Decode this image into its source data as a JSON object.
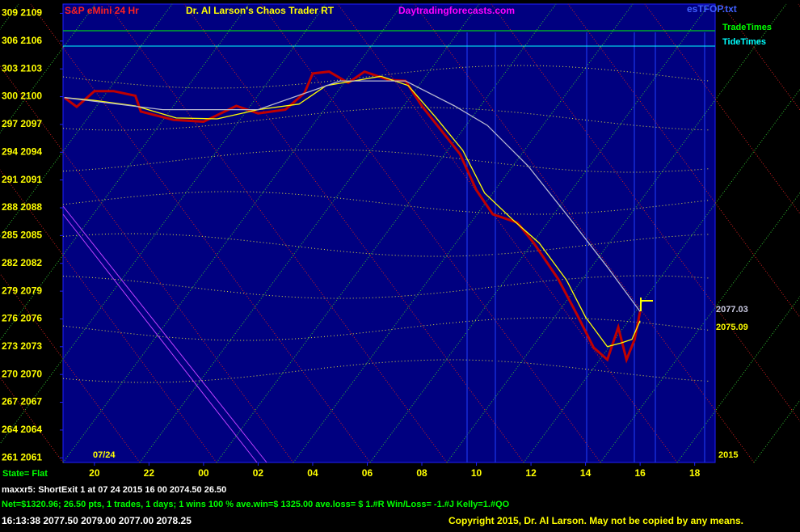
{
  "chart_data": {
    "type": "line",
    "title": "S&P eMini 24 Hr",
    "author_title": "Dr. Al Larson's Chaos Trader RT",
    "website": "Daytradingforecasts.com",
    "file_name": "esTFOP.txt",
    "time_lines": [
      "TradeTimes",
      "TideTimes"
    ],
    "date_label": "07/24",
    "year_label": "2015",
    "state": "State= Flat",
    "price_labels": [
      "2077.03",
      "2075.09"
    ],
    "footer": [
      "maxxr5: ShortExit 1 at 07 24 2015 16 00   2074.50     26.50",
      "Net=$1320.96; 26.50 pts, 1 trades, 1 days; 1 wins 100 % ave.win=$ 1325.00 ave.loss= $ 1.#R Win/Loss= -1.#J Kelly=1.#QO",
      "16:13:38  2077.50 2079.00 2077.00 2078.25",
      "Copyright 2015, Dr. Al Larson. May not be copied by any means."
    ],
    "xlim": [
      18.85,
      42.75
    ],
    "ylim": [
      2060.5,
      2110
    ],
    "xticks": [
      20,
      22,
      {
        "value": 24,
        "label": "00"
      },
      {
        "value": 26,
        "label": "02"
      },
      {
        "value": 28,
        "label": "04"
      },
      {
        "value": 30,
        "label": "06"
      },
      {
        "value": 32,
        "label": "08"
      },
      {
        "value": 34,
        "label": "10"
      },
      {
        "value": 36,
        "label": "12"
      },
      {
        "value": 38,
        "label": "14"
      },
      {
        "value": 40,
        "label": "16"
      },
      {
        "value": 42,
        "label": "18"
      }
    ],
    "yticks": [
      {
        "value": 2109,
        "label": "309 2109"
      },
      {
        "value": 2106,
        "label": "306 2106"
      },
      {
        "value": 2103,
        "label": "303 2103"
      },
      {
        "value": 2100,
        "label": "300 2100"
      },
      {
        "value": 2097,
        "label": "297 2097"
      },
      {
        "value": 2094,
        "label": "294 2094"
      },
      {
        "value": 2091,
        "label": "291 2091"
      },
      {
        "value": 2088,
        "label": "288 2088"
      },
      {
        "value": 2085,
        "label": "285 2085"
      },
      {
        "value": 2082,
        "label": "282 2082"
      },
      {
        "value": 2079,
        "label": "279 2079"
      },
      {
        "value": 2076,
        "label": "276 2076"
      },
      {
        "value": 2073,
        "label": "273 2073"
      },
      {
        "value": 2070,
        "label": "270 2070"
      },
      {
        "value": 2067,
        "label": "267 2067"
      },
      {
        "value": 2064,
        "label": "264 2064"
      },
      {
        "value": 2061,
        "label": "261 2061"
      }
    ],
    "series": [
      {
        "color": "#c00000",
        "x": [
          18.9,
          19.35,
          20,
          20.7,
          21.5,
          21.7,
          22.9,
          24,
          25.2,
          26,
          27,
          27.7,
          28,
          28.6,
          29.3,
          29.9,
          30.8,
          31.4,
          32,
          32.7,
          33.4,
          33.6,
          34,
          34.6,
          35.5,
          36.1,
          37,
          37.7,
          38.3,
          38.8,
          39.2,
          39.5,
          39.8,
          40
        ],
        "values": [
          2099.9,
          2098.9,
          2100.6,
          2100.6,
          2100.1,
          2098.4,
          2097.5,
          2097.3,
          2099,
          2098.2,
          2098.6,
          2100.4,
          2102.5,
          2102.7,
          2101.5,
          2102.7,
          2101.8,
          2101.7,
          2099,
          2096.4,
          2093.8,
          2092.5,
          2089.9,
          2087.3,
          2086.4,
          2084.2,
          2080.3,
          2076.4,
          2072.9,
          2071.6,
          2075.1,
          2071.6,
          2073.8,
          2076.8
        ]
      },
      {
        "color": "#ffff00",
        "x": [
          18.9,
          20,
          21.5,
          23,
          24.5,
          26,
          27.5,
          28.5,
          29.5,
          30.5,
          31.5,
          32.5,
          33.5,
          34.3,
          35.3,
          36.3,
          37.3,
          38,
          38.8,
          39.3,
          39.7,
          40
        ],
        "values": [
          2099.9,
          2099.6,
          2099,
          2097.7,
          2097.6,
          2098.6,
          2099.2,
          2101.2,
          2101.7,
          2102.2,
          2101.2,
          2097.8,
          2094.2,
          2089.6,
          2086.8,
          2084.2,
          2080.2,
          2076.2,
          2073,
          2073.4,
          2073.8,
          2075.8
        ]
      },
      {
        "color": "#b8b8d0",
        "x": [
          18.9,
          22.5,
          26,
          29,
          31.4,
          33.2,
          34.4,
          35.9,
          37.3,
          38.8,
          40
        ],
        "values": [
          2099.9,
          2098.6,
          2098.6,
          2101.7,
          2101.7,
          2099,
          2096.9,
          2092.5,
          2087.3,
          2081.6,
          2076.8
        ]
      }
    ]
  }
}
